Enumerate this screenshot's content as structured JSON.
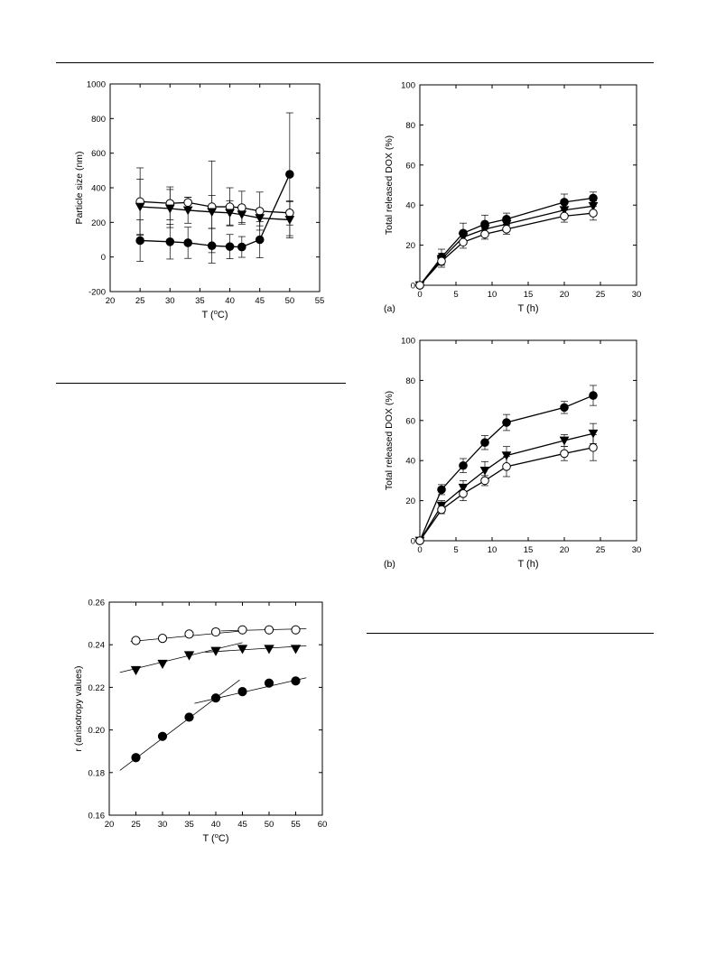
{
  "chart_data": [
    {
      "id": "particle",
      "type": "line",
      "xlabel_main": "T (",
      "xlabel_sup": "o",
      "xlabel_tail": "C)",
      "ylabel": "Particle size (nm)",
      "xlim": [
        20,
        55
      ],
      "ylim": [
        -200,
        1000
      ],
      "xticks": [
        20,
        25,
        30,
        35,
        40,
        45,
        50,
        55
      ],
      "yticks": [
        -200,
        0,
        200,
        400,
        600,
        800,
        1000
      ],
      "grid": false,
      "series": [
        {
          "marker": "open-circle",
          "x": [
            25,
            30,
            33,
            37,
            40,
            42,
            45,
            50
          ],
          "y": [
            320,
            310,
            315,
            290,
            290,
            285,
            265,
            255
          ],
          "err": [
            195,
            95,
            30,
            265,
            110,
            95,
            110,
            70
          ]
        },
        {
          "marker": "filled-triangle-down",
          "x": [
            25,
            30,
            33,
            37,
            40,
            42,
            45,
            50
          ],
          "y": [
            290,
            280,
            270,
            260,
            255,
            245,
            225,
            215
          ],
          "err": [
            160,
            110,
            75,
            95,
            70,
            45,
            45,
            105
          ]
        },
        {
          "marker": "filled-circle",
          "x": [
            25,
            30,
            33,
            37,
            40,
            42,
            45,
            50
          ],
          "y": [
            95,
            88,
            82,
            65,
            60,
            58,
            100,
            478
          ],
          "err": [
            120,
            100,
            90,
            100,
            70,
            60,
            105,
            355
          ]
        }
      ]
    },
    {
      "id": "releaseA",
      "type": "line",
      "panel_label": "(a)",
      "xlabel": "T (h)",
      "ylabel": "Total released DOX  (%)",
      "xlim": [
        0,
        30
      ],
      "ylim": [
        0,
        100
      ],
      "xticks": [
        0,
        5,
        10,
        15,
        20,
        25,
        30
      ],
      "yticks": [
        0,
        20,
        40,
        60,
        80,
        100
      ],
      "grid": false,
      "series": [
        {
          "marker": "filled-circle",
          "x": [
            0,
            3,
            6,
            9,
            12,
            20,
            24
          ],
          "y": [
            0,
            14,
            26,
            30.5,
            33,
            41.5,
            43.5
          ],
          "err": [
            0,
            4,
            5,
            4.5,
            3,
            4,
            3
          ]
        },
        {
          "marker": "filled-triangle-down",
          "x": [
            0,
            3,
            6,
            9,
            12,
            20,
            24
          ],
          "y": [
            0,
            13,
            24,
            28,
            30.5,
            37.5,
            39.5
          ],
          "err": [
            0,
            3,
            3,
            3,
            2.5,
            3,
            2.5
          ]
        },
        {
          "marker": "open-circle",
          "x": [
            0,
            3,
            6,
            9,
            12,
            20,
            24
          ],
          "y": [
            0,
            12,
            21.5,
            25.5,
            28,
            34.5,
            36
          ],
          "err": [
            0,
            3,
            3,
            2.5,
            2.5,
            3,
            3.5
          ]
        }
      ]
    },
    {
      "id": "releaseB",
      "type": "line",
      "panel_label": "(b)",
      "xlabel": "T (h)",
      "ylabel": "Total released DOX  (%)",
      "xlim": [
        0,
        30
      ],
      "ylim": [
        0,
        100
      ],
      "xticks": [
        0,
        5,
        10,
        15,
        20,
        25,
        30
      ],
      "yticks": [
        0,
        20,
        40,
        60,
        80,
        100
      ],
      "grid": false,
      "series": [
        {
          "marker": "filled-circle",
          "x": [
            0,
            3,
            6,
            9,
            12,
            20,
            24
          ],
          "y": [
            0,
            25.5,
            37.5,
            49,
            59,
            66.5,
            72.5
          ],
          "err": [
            0,
            2.5,
            3.5,
            3.5,
            4,
            3,
            5
          ]
        },
        {
          "marker": "filled-triangle-down",
          "x": [
            0,
            3,
            6,
            9,
            12,
            20,
            24
          ],
          "y": [
            0,
            17.5,
            26.5,
            35,
            42.5,
            50,
            53.5
          ],
          "err": [
            0,
            2.5,
            3.5,
            4.5,
            4.5,
            3,
            5
          ]
        },
        {
          "marker": "open-circle",
          "x": [
            0,
            3,
            6,
            9,
            12,
            20,
            24
          ],
          "y": [
            0,
            15.5,
            23.5,
            30,
            37,
            43.5,
            46.5
          ],
          "err": [
            0,
            2,
            3.5,
            2.5,
            5,
            3.5,
            6.5
          ]
        }
      ]
    },
    {
      "id": "anisotropy",
      "type": "scatter",
      "xlabel_main": "T (",
      "xlabel_sup": "o",
      "xlabel_tail": "C)",
      "ylabel": "r (anisotropy values)",
      "xlim": [
        20,
        60
      ],
      "ylim": [
        0.16,
        0.26
      ],
      "xticks": [
        20,
        25,
        30,
        35,
        40,
        45,
        50,
        55,
        60
      ],
      "yticks": [
        "0.16",
        "0.18",
        "0.20",
        "0.22",
        "0.24",
        "0.26"
      ],
      "grid": false,
      "series": [
        {
          "marker": "open-circle",
          "x": [
            25,
            30,
            35,
            40,
            45,
            50,
            55
          ],
          "y": [
            0.242,
            0.243,
            0.245,
            0.246,
            0.247,
            0.247,
            0.247
          ]
        },
        {
          "marker": "filled-triangle-down",
          "x": [
            25,
            30,
            35,
            40,
            45,
            50,
            55
          ],
          "y": [
            0.228,
            0.231,
            0.235,
            0.237,
            0.238,
            0.238,
            0.238
          ]
        },
        {
          "marker": "filled-circle",
          "x": [
            25,
            30,
            35,
            40,
            45,
            50,
            55
          ],
          "y": [
            0.187,
            0.197,
            0.206,
            0.215,
            0.218,
            0.222,
            0.223
          ]
        }
      ],
      "fit_lines": [
        {
          "x": [
            24,
            45
          ],
          "y": [
            0.2415,
            0.2465
          ]
        },
        {
          "x": [
            41,
            57
          ],
          "y": [
            0.2465,
            0.2475
          ]
        },
        {
          "x": [
            22,
            45
          ],
          "y": [
            0.227,
            0.241
          ]
        },
        {
          "x": [
            38,
            57
          ],
          "y": [
            0.2365,
            0.2395
          ]
        },
        {
          "x": [
            22,
            44.5
          ],
          "y": [
            0.181,
            0.2235
          ]
        },
        {
          "x": [
            36,
            57
          ],
          "y": [
            0.2125,
            0.2245
          ]
        }
      ]
    }
  ]
}
